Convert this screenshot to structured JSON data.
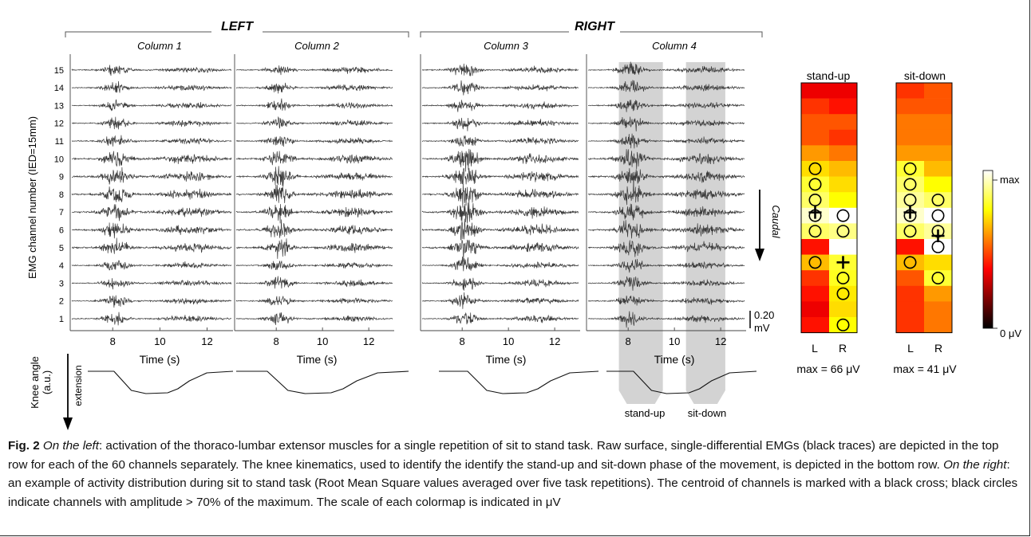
{
  "figure": {
    "groups": [
      {
        "label": "LEFT",
        "columns": [
          "Column 1",
          "Column 2"
        ]
      },
      {
        "label": "RIGHT",
        "columns": [
          "Column 3",
          "Column 4"
        ]
      }
    ],
    "y_axis_label": "EMG channel number (IED=15mm)",
    "channels": [
      "15",
      "14",
      "13",
      "12",
      "11",
      "10",
      "9",
      "8",
      "7",
      "6",
      "5",
      "4",
      "3",
      "2",
      "1"
    ],
    "x_ticks": [
      "8",
      "10",
      "12"
    ],
    "x_axis_label": "Time (s)",
    "scale_bar": {
      "value": "0.20",
      "unit": "mV"
    },
    "caudal_label": "Caudal",
    "knee_label_line1": "Knee angle",
    "knee_label_line2": "(a.u.)",
    "extension_label": "extension",
    "phase_labels": [
      "stand-up",
      "sit-down"
    ],
    "trace_color": "#3a3a3a",
    "phase_shade_color": "#d3d3d3"
  },
  "heatmaps": [
    {
      "title": "stand-up",
      "columns_labels": [
        "L",
        "R"
      ],
      "max_text": "max = 66 μV",
      "values": [
        [
          0.35,
          0.35
        ],
        [
          0.45,
          0.4
        ],
        [
          0.5,
          0.5
        ],
        [
          0.5,
          0.45
        ],
        [
          0.6,
          0.55
        ],
        [
          0.7,
          0.65
        ],
        [
          0.8,
          0.7
        ],
        [
          0.85,
          0.75
        ],
        [
          0.95,
          1.0
        ],
        [
          0.85,
          0.88
        ],
        [
          0.4,
          1.0
        ],
        [
          0.65,
          0.8
        ],
        [
          0.45,
          0.78
        ],
        [
          0.4,
          0.72
        ],
        [
          0.35,
          0.7
        ],
        [
          0.4,
          0.75
        ]
      ],
      "circles": [
        [
          5,
          0
        ],
        [
          6,
          0
        ],
        [
          7,
          0
        ],
        [
          8,
          0
        ],
        [
          8,
          1
        ],
        [
          9,
          0
        ],
        [
          9,
          1
        ],
        [
          11,
          0
        ],
        [
          12,
          1
        ],
        [
          13,
          1
        ],
        [
          15,
          1
        ]
      ],
      "centroid": {
        "row": 8.0,
        "col": 0.0
      },
      "centroid2": {
        "row": 11.2,
        "col": 1.0
      }
    },
    {
      "title": "sit-down",
      "columns_labels": [
        "L",
        "R"
      ],
      "max_text": "max = 41 μV",
      "values": [
        [
          0.45,
          0.5
        ],
        [
          0.5,
          0.5
        ],
        [
          0.55,
          0.55
        ],
        [
          0.55,
          0.55
        ],
        [
          0.6,
          0.6
        ],
        [
          0.8,
          0.65
        ],
        [
          0.85,
          0.75
        ],
        [
          0.9,
          0.85
        ],
        [
          0.95,
          1.0
        ],
        [
          0.85,
          0.9
        ],
        [
          0.4,
          1.0
        ],
        [
          0.65,
          0.7
        ],
        [
          0.5,
          0.8
        ],
        [
          0.45,
          0.6
        ],
        [
          0.45,
          0.55
        ],
        [
          0.45,
          0.55
        ]
      ],
      "circles": [
        [
          5,
          0
        ],
        [
          6,
          0
        ],
        [
          7,
          0
        ],
        [
          7,
          1
        ],
        [
          8,
          0
        ],
        [
          8,
          1
        ],
        [
          9,
          0
        ],
        [
          9,
          1
        ],
        [
          10,
          1
        ],
        [
          11,
          0
        ],
        [
          12,
          1
        ]
      ],
      "centroid": {
        "row": 8.0,
        "col": 0.0
      },
      "centroid2": {
        "row": 9.5,
        "col": 1.0
      }
    }
  ],
  "colorbar": {
    "top_label": "max",
    "bottom_label": "0 μV"
  },
  "caption": {
    "figno": "Fig. 2",
    "left_intro": "On the left",
    "part1": ": activation of the thoraco-lumbar extensor muscles for a single repetition of sit to stand task. Raw surface, single-differential EMGs (black traces) are depicted in the top row for each of the 60 channels separately. The knee kinematics, used to identify the identify the stand-up and sit-down phase of the movement, is depicted in the bottom row. ",
    "right_intro": "On the right",
    "part2": ": an example of activity distribution during sit to stand task (Root Mean Square values averaged over five task repetitions). The centroid of channels is marked with a black cross; black circles indicate channels with amplitude > 70% of the maximum. The scale of each colormap is indicated in μV"
  }
}
